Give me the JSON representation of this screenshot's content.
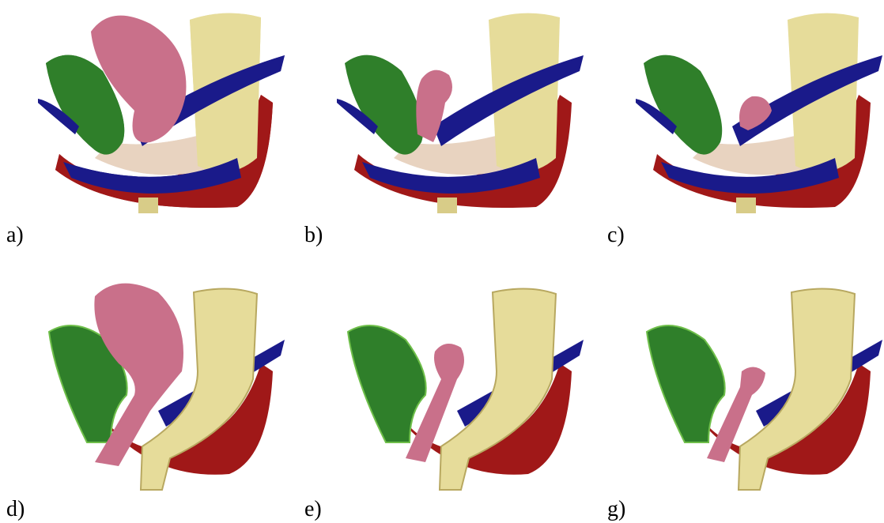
{
  "panels": [
    {
      "label": "a)"
    },
    {
      "label": "b)"
    },
    {
      "label": "c)"
    },
    {
      "label": "d)"
    },
    {
      "label": "e)"
    },
    {
      "label": "g)"
    }
  ]
}
